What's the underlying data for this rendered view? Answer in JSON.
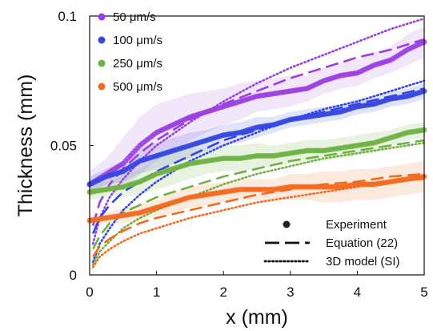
{
  "chart_data": {
    "type": "line",
    "title": "",
    "xlabel": "x (mm)",
    "ylabel": "Thickness (mm)",
    "xlim": [
      0,
      5
    ],
    "ylim": [
      0,
      0.1
    ],
    "x_ticks": [
      "0",
      "1",
      "2",
      "3",
      "4",
      "5"
    ],
    "y_ticks": [
      "0",
      "0.05",
      "0.1"
    ],
    "grid": false,
    "speed_legend_position": "top-left",
    "style_legend_position": "bottom-right",
    "speed_legend": [
      {
        "label": " 50 μm/s",
        "color": "#9a3fe0"
      },
      {
        "label": "100 μm/s",
        "color": "#3546e0"
      },
      {
        "label": "250 μm/s",
        "color": "#6fb143"
      },
      {
        "label": "500 μm/s",
        "color": "#f26a1f"
      }
    ],
    "style_legend": [
      {
        "label": "Experiment",
        "style": "marker"
      },
      {
        "label": "Equation (22)",
        "style": "dashed"
      },
      {
        "label": "3D model (SI)",
        "style": "dotted"
      }
    ],
    "series": [
      {
        "name": " 50 μm/s",
        "color": "#9a3fe0",
        "band_alpha": 0.13,
        "experiment": {
          "x": [
            0,
            0.25,
            0.5,
            0.75,
            1.0,
            1.25,
            1.5,
            1.75,
            2.0,
            2.25,
            2.5,
            2.75,
            3.0,
            3.25,
            3.5,
            3.75,
            4.0,
            4.25,
            4.5,
            4.75,
            5.0
          ],
          "y": [
            0.035,
            0.039,
            0.043,
            0.05,
            0.055,
            0.058,
            0.061,
            0.063,
            0.065,
            0.067,
            0.069,
            0.07,
            0.071,
            0.072,
            0.075,
            0.077,
            0.078,
            0.081,
            0.083,
            0.087,
            0.09
          ],
          "err": [
            0.005,
            0.006,
            0.01,
            0.011,
            0.011,
            0.01,
            0.009,
            0.008,
            0.007,
            0.007,
            0.006,
            0.006,
            0.006,
            0.005,
            0.005,
            0.005,
            0.005,
            0.005,
            0.005,
            0.006,
            0.006
          ]
        },
        "equation": {
          "x": [
            0.05,
            0.15,
            0.3,
            0.5,
            0.75,
            1.0,
            1.5,
            2.0,
            2.5,
            3.0,
            3.5,
            4.0,
            4.5,
            5.0
          ],
          "y": [
            0.019,
            0.028,
            0.035,
            0.041,
            0.047,
            0.052,
            0.06,
            0.066,
            0.071,
            0.076,
            0.08,
            0.084,
            0.087,
            0.091
          ]
        },
        "model": {
          "x": [
            0.05,
            0.15,
            0.3,
            0.5,
            0.75,
            1.0,
            1.5,
            2.0,
            2.5,
            3.0,
            3.5,
            4.0,
            4.5,
            5.0
          ],
          "y": [
            0.012,
            0.022,
            0.03,
            0.037,
            0.044,
            0.05,
            0.059,
            0.067,
            0.074,
            0.08,
            0.085,
            0.09,
            0.095,
            0.099
          ]
        }
      },
      {
        "name": "100 μm/s",
        "color": "#3546e0",
        "band_alpha": 0.15,
        "experiment": {
          "x": [
            0,
            0.25,
            0.5,
            0.75,
            1.0,
            1.25,
            1.5,
            1.75,
            2.0,
            2.25,
            2.5,
            2.75,
            3.0,
            3.25,
            3.5,
            3.75,
            4.0,
            4.25,
            4.5,
            4.75,
            5.0
          ],
          "y": [
            0.035,
            0.038,
            0.04,
            0.044,
            0.046,
            0.048,
            0.05,
            0.052,
            0.054,
            0.055,
            0.057,
            0.058,
            0.06,
            0.061,
            0.062,
            0.063,
            0.065,
            0.066,
            0.068,
            0.069,
            0.071
          ],
          "err": [
            0.003,
            0.003,
            0.004,
            0.005,
            0.005,
            0.005,
            0.005,
            0.004,
            0.004,
            0.004,
            0.004,
            0.003,
            0.003,
            0.003,
            0.003,
            0.003,
            0.003,
            0.003,
            0.003,
            0.003,
            0.003
          ]
        },
        "equation": {
          "x": [
            0.05,
            0.15,
            0.3,
            0.5,
            0.75,
            1.0,
            1.5,
            2.0,
            2.5,
            3.0,
            3.5,
            4.0,
            4.5,
            5.0
          ],
          "y": [
            0.016,
            0.022,
            0.027,
            0.032,
            0.036,
            0.04,
            0.046,
            0.052,
            0.056,
            0.06,
            0.063,
            0.066,
            0.069,
            0.072
          ]
        },
        "model": {
          "x": [
            0.05,
            0.15,
            0.3,
            0.5,
            0.75,
            1.0,
            1.5,
            2.0,
            2.5,
            3.0,
            3.5,
            4.0,
            4.5,
            5.0
          ],
          "y": [
            0.005,
            0.012,
            0.018,
            0.025,
            0.031,
            0.036,
            0.044,
            0.05,
            0.055,
            0.06,
            0.064,
            0.067,
            0.071,
            0.075
          ]
        }
      },
      {
        "name": "250 μm/s",
        "color": "#6fb143",
        "band_alpha": 0.16,
        "experiment": {
          "x": [
            0,
            0.25,
            0.5,
            0.75,
            1.0,
            1.25,
            1.5,
            1.75,
            2.0,
            2.25,
            2.5,
            2.75,
            3.0,
            3.25,
            3.5,
            3.75,
            4.0,
            4.25,
            4.5,
            4.75,
            5.0
          ],
          "y": [
            0.032,
            0.033,
            0.034,
            0.036,
            0.039,
            0.041,
            0.043,
            0.044,
            0.045,
            0.045,
            0.046,
            0.046,
            0.047,
            0.048,
            0.048,
            0.049,
            0.05,
            0.051,
            0.053,
            0.055,
            0.056
          ],
          "err": [
            0.003,
            0.003,
            0.004,
            0.005,
            0.006,
            0.006,
            0.006,
            0.005,
            0.005,
            0.005,
            0.005,
            0.004,
            0.004,
            0.004,
            0.004,
            0.004,
            0.004,
            0.004,
            0.003,
            0.003,
            0.003
          ]
        },
        "equation": {
          "x": [
            0.05,
            0.15,
            0.3,
            0.5,
            0.75,
            1.0,
            1.5,
            2.0,
            2.5,
            3.0,
            3.5,
            4.0,
            4.5,
            5.0
          ],
          "y": [
            0.01,
            0.015,
            0.02,
            0.024,
            0.027,
            0.03,
            0.034,
            0.038,
            0.041,
            0.044,
            0.046,
            0.048,
            0.05,
            0.052
          ]
        },
        "model": {
          "x": [
            0.05,
            0.15,
            0.3,
            0.5,
            0.75,
            1.0,
            1.5,
            2.0,
            2.5,
            3.0,
            3.5,
            4.0,
            4.5,
            5.0
          ],
          "y": [
            0.004,
            0.009,
            0.013,
            0.018,
            0.022,
            0.025,
            0.03,
            0.035,
            0.039,
            0.042,
            0.045,
            0.047,
            0.049,
            0.051
          ]
        }
      },
      {
        "name": "500 μm/s",
        "color": "#f26a1f",
        "band_alpha": 0.14,
        "experiment": {
          "x": [
            0,
            0.25,
            0.5,
            0.75,
            1.0,
            1.25,
            1.5,
            1.75,
            2.0,
            2.25,
            2.5,
            2.75,
            3.0,
            3.25,
            3.5,
            3.75,
            4.0,
            4.25,
            4.5,
            4.75,
            5.0
          ],
          "y": [
            0.021,
            0.022,
            0.023,
            0.024,
            0.026,
            0.028,
            0.03,
            0.031,
            0.032,
            0.033,
            0.033,
            0.033,
            0.034,
            0.034,
            0.034,
            0.034,
            0.035,
            0.035,
            0.036,
            0.037,
            0.038
          ],
          "err": [
            0.002,
            0.002,
            0.003,
            0.003,
            0.003,
            0.004,
            0.004,
            0.004,
            0.004,
            0.004,
            0.004,
            0.004,
            0.005,
            0.005,
            0.006,
            0.006,
            0.006,
            0.006,
            0.006,
            0.006,
            0.006
          ]
        },
        "equation": {
          "x": [
            0.05,
            0.15,
            0.3,
            0.5,
            0.75,
            1.0,
            1.5,
            2.0,
            2.5,
            3.0,
            3.5,
            4.0,
            4.5,
            5.0
          ],
          "y": [
            0.007,
            0.011,
            0.014,
            0.017,
            0.02,
            0.022,
            0.025,
            0.028,
            0.031,
            0.033,
            0.035,
            0.036,
            0.038,
            0.039
          ]
        },
        "model": {
          "x": [
            0.05,
            0.15,
            0.3,
            0.5,
            0.75,
            1.0,
            1.5,
            2.0,
            2.5,
            3.0,
            3.5,
            4.0,
            4.5,
            5.0
          ],
          "y": [
            0.003,
            0.007,
            0.01,
            0.013,
            0.016,
            0.018,
            0.022,
            0.025,
            0.028,
            0.03,
            0.032,
            0.034,
            0.036,
            0.037
          ]
        }
      }
    ]
  }
}
